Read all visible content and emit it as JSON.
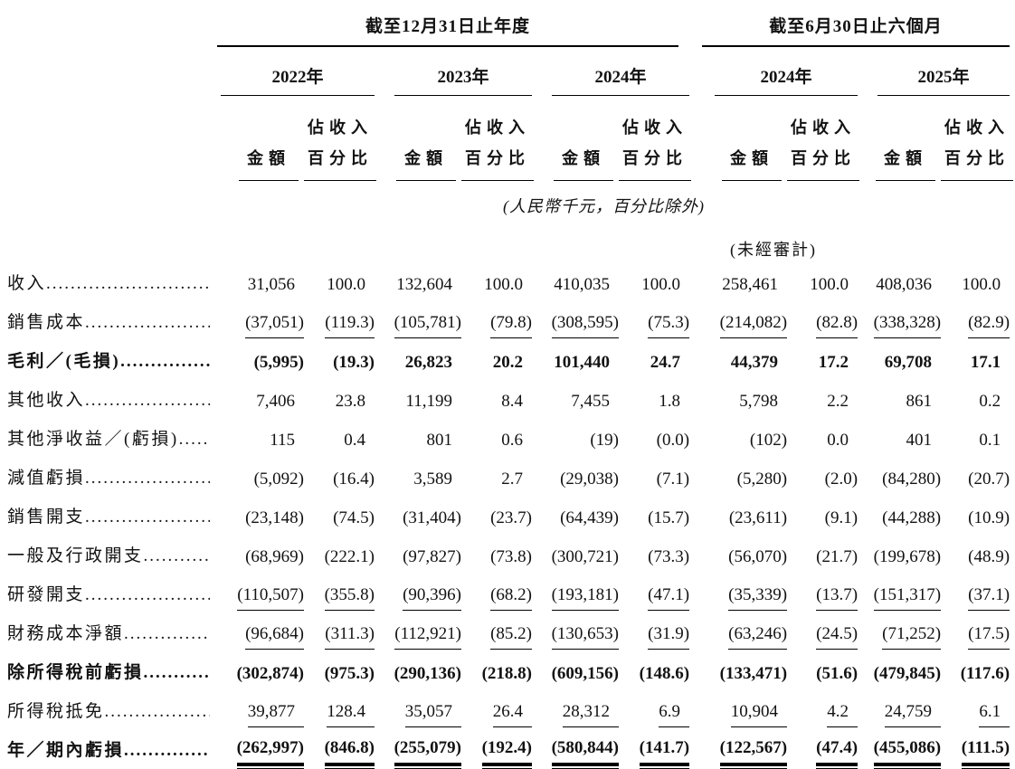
{
  "colors": {
    "text": "#121212",
    "rule": "#000000",
    "background": "#ffffff"
  },
  "table": {
    "period_groups": [
      {
        "label": "截至12月31日止年度",
        "years": [
          "2022年",
          "2023年",
          "2024年"
        ]
      },
      {
        "label": "截至6月30日止六個月",
        "years": [
          "2024年",
          "2025年"
        ]
      }
    ],
    "year_headers": [
      "2022年",
      "2023年",
      "2024年",
      "2024年",
      "2025年"
    ],
    "col_headers": {
      "amount": "金額",
      "pct_line1": "佔收入",
      "pct_line2": "百分比"
    },
    "unit_note": "(人民幣千元，百分比除外)",
    "unaudited_note": "(未經審計)",
    "rows": [
      {
        "label": "收入",
        "bold": false,
        "underline": "none",
        "values": [
          "31,056",
          "100.0",
          "132,604",
          "100.0",
          "410,035",
          "100.0",
          "258,461",
          "100.0",
          "408,036",
          "100.0"
        ]
      },
      {
        "label": "銷售成本",
        "bold": false,
        "underline": "single",
        "values": [
          "(37,051)",
          "(119.3)",
          "(105,781)",
          "(79.8)",
          "(308,595)",
          "(75.3)",
          "(214,082)",
          "(82.8)",
          "(338,328)",
          "(82.9)"
        ]
      },
      {
        "label": "毛利／(毛損)",
        "bold": true,
        "underline": "none",
        "values": [
          "(5,995)",
          "(19.3)",
          "26,823",
          "20.2",
          "101,440",
          "24.7",
          "44,379",
          "17.2",
          "69,708",
          "17.1"
        ]
      },
      {
        "label": "其他收入",
        "bold": false,
        "underline": "none",
        "values": [
          "7,406",
          "23.8",
          "11,199",
          "8.4",
          "7,455",
          "1.8",
          "5,798",
          "2.2",
          "861",
          "0.2"
        ]
      },
      {
        "label": "其他淨收益／(虧損)",
        "bold": false,
        "underline": "none",
        "values": [
          "115",
          "0.4",
          "801",
          "0.6",
          "(19)",
          "(0.0)",
          "(102)",
          "0.0",
          "401",
          "0.1"
        ]
      },
      {
        "label": "減值虧損",
        "bold": false,
        "underline": "none",
        "values": [
          "(5,092)",
          "(16.4)",
          "3,589",
          "2.7",
          "(29,038)",
          "(7.1)",
          "(5,280)",
          "(2.0)",
          "(84,280)",
          "(20.7)"
        ]
      },
      {
        "label": "銷售開支",
        "bold": false,
        "underline": "none",
        "values": [
          "(23,148)",
          "(74.5)",
          "(31,404)",
          "(23.7)",
          "(64,439)",
          "(15.7)",
          "(23,611)",
          "(9.1)",
          "(44,288)",
          "(10.9)"
        ]
      },
      {
        "label": "一般及行政開支",
        "bold": false,
        "underline": "none",
        "values": [
          "(68,969)",
          "(222.1)",
          "(97,827)",
          "(73.8)",
          "(300,721)",
          "(73.3)",
          "(56,070)",
          "(21.7)",
          "(199,678)",
          "(48.9)"
        ]
      },
      {
        "label": "研發開支",
        "bold": false,
        "underline": "single",
        "values": [
          "(110,507)",
          "(355.8)",
          "(90,396)",
          "(68.2)",
          "(193,181)",
          "(47.1)",
          "(35,339)",
          "(13.7)",
          "(151,317)",
          "(37.1)"
        ]
      },
      {
        "label": "財務成本淨額",
        "bold": false,
        "underline": "single",
        "values": [
          "(96,684)",
          "(311.3)",
          "(112,921)",
          "(85.2)",
          "(130,653)",
          "(31.9)",
          "(63,246)",
          "(24.5)",
          "(71,252)",
          "(17.5)"
        ]
      },
      {
        "label": "除所得稅前虧損",
        "bold": true,
        "underline": "none",
        "values": [
          "(302,874)",
          "(975.3)",
          "(290,136)",
          "(218.8)",
          "(609,156)",
          "(148.6)",
          "(133,471)",
          "(51.6)",
          "(479,845)",
          "(117.6)"
        ]
      },
      {
        "label": "所得稅抵免",
        "bold": false,
        "underline": "single",
        "values": [
          "39,877",
          "128.4",
          "35,057",
          "26.4",
          "28,312",
          "6.9",
          "10,904",
          "4.2",
          "24,759",
          "6.1"
        ]
      },
      {
        "label": "年／期內虧損",
        "bold": true,
        "underline": "double",
        "values": [
          "(262,997)",
          "(846.8)",
          "(255,079)",
          "(192.4)",
          "(580,844)",
          "(141.7)",
          "(122,567)",
          "(47.4)",
          "(455,086)",
          "(111.5)"
        ]
      }
    ]
  }
}
